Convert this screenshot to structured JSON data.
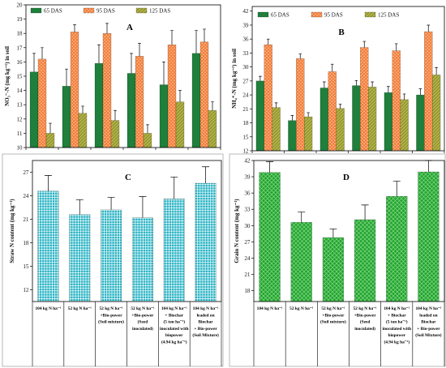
{
  "chart_data": [
    {
      "panel": "A",
      "type": "bar",
      "ylabel": "NO₃⁻-N (mg kg⁻¹) in soil",
      "ylim": [
        10,
        20
      ],
      "yticks": [
        10,
        11,
        12,
        13,
        14,
        15,
        16,
        17,
        18,
        19,
        20
      ],
      "grid": false,
      "legend": "top-left",
      "series": [
        {
          "name": "65 DAS",
          "color": "#1f7f3b",
          "values": [
            15.3,
            14.3,
            15.9,
            15.2,
            14.4,
            16.6
          ],
          "errors": [
            1.3,
            1.2,
            1.3,
            1.4,
            1.6,
            1.6
          ]
        },
        {
          "name": "95 DAS",
          "color": "#f47f3a",
          "values": [
            16.2,
            18.1,
            18.0,
            16.4,
            17.2,
            17.4
          ],
          "errors": [
            0.8,
            0.5,
            0.7,
            0.9,
            1.0,
            0.9
          ]
        },
        {
          "name": "125 DAS",
          "color": "#979a2c",
          "values": [
            11.0,
            12.4,
            11.9,
            11.0,
            13.2,
            12.6
          ],
          "errors": [
            0.7,
            0.5,
            0.7,
            0.6,
            0.8,
            0.6
          ]
        }
      ]
    },
    {
      "panel": "B",
      "type": "bar",
      "ylabel": "NH₄⁺-N (mg kg⁻¹) in soil",
      "ylim": [
        12,
        43
      ],
      "yticks": [
        12,
        15,
        18,
        21,
        24,
        27,
        30,
        33,
        36,
        39,
        42
      ],
      "grid": false,
      "legend": "top-left",
      "series": [
        {
          "name": "65 DAS",
          "color": "#1f7f3b",
          "values": [
            27.0,
            18.5,
            25.5,
            26.0,
            24.5,
            24.0
          ],
          "errors": [
            1.0,
            1.1,
            1.3,
            1.1,
            1.3,
            1.3
          ]
        },
        {
          "name": "95 DAS",
          "color": "#f47f3a",
          "values": [
            34.8,
            31.8,
            29.0,
            34.2,
            33.5,
            37.6
          ],
          "errors": [
            1.2,
            1.0,
            1.6,
            1.3,
            1.5,
            1.4
          ]
        },
        {
          "name": "125 DAS",
          "color": "#979a2c",
          "values": [
            21.3,
            19.3,
            21.1,
            25.7,
            23.0,
            28.3
          ],
          "errors": [
            1.0,
            0.9,
            0.9,
            1.1,
            1.2,
            1.6
          ]
        }
      ]
    },
    {
      "panel": "C",
      "type": "bar",
      "ylabel": "Straw N content (mg kg⁻¹)",
      "ylim": [
        10.5,
        28.5
      ],
      "yticks": [
        12,
        15,
        18,
        21,
        24,
        27
      ],
      "grid": false,
      "categories": [
        [
          "104 kg N ha⁻¹"
        ],
        [
          "52 kg N ha⁻¹"
        ],
        [
          "52 kg N ha⁻¹",
          "+Bio-power",
          "(Soil mixture)"
        ],
        [
          "52 kg N ha⁻¹",
          "+Bio-power",
          "(Seed",
          "inoculated)"
        ],
        [
          "104 kg N ha⁻¹",
          "+ Biochar",
          "(5 ton ha⁻¹)",
          "inoculated with",
          "biopower",
          "(4.94 kg ha⁻¹)"
        ],
        [
          "104 kg N ha⁻¹",
          "leaded on",
          "Biochar",
          "+ Bio-power",
          "(Soil Mixture)"
        ]
      ],
      "series": [
        {
          "color": "#25b2c3",
          "values": [
            24.6,
            21.6,
            22.2,
            21.2,
            23.6,
            25.6
          ],
          "errors": [
            2.0,
            1.9,
            1.6,
            2.7,
            2.8,
            2.1
          ]
        }
      ]
    },
    {
      "panel": "D",
      "type": "bar",
      "ylabel": "Grain N content (mg kg⁻¹)",
      "ylim": [
        16,
        42
      ],
      "yticks": [
        18,
        21,
        24,
        27,
        30,
        33,
        36,
        39,
        42
      ],
      "grid": false,
      "categories": [
        [
          "104 kg N ha⁻¹"
        ],
        [
          "52 kg N ha⁻¹"
        ],
        [
          "52 kg N ha⁻¹",
          "+Bio-power",
          "(Soil mixture)"
        ],
        [
          "52 kg N ha⁻¹",
          "+Bio-power",
          "(Seed",
          "inoculated)"
        ],
        [
          "104 kg N ha⁻¹",
          "+ Biochar",
          "(5 ton ha⁻¹)",
          "inoculated with",
          "biopower",
          "(4.94 kg ha⁻¹)"
        ],
        [
          "104 kg N ha⁻¹",
          "loaded on",
          "Biochar",
          "+ Bio-power",
          "(Soil Mixture)"
        ]
      ],
      "series": [
        {
          "color": "#22a233",
          "values": [
            39.8,
            30.6,
            27.8,
            31.1,
            35.4,
            39.9
          ],
          "errors": [
            2.0,
            1.9,
            1.6,
            2.7,
            2.8,
            2.1
          ]
        }
      ]
    }
  ]
}
